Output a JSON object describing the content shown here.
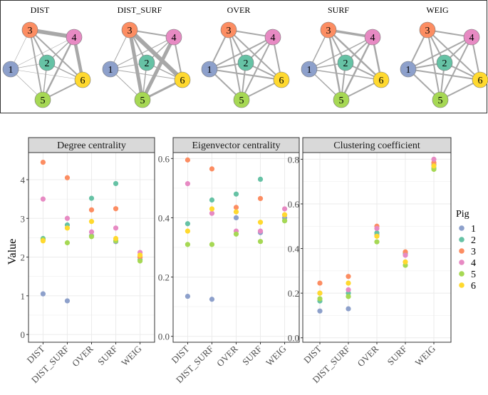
{
  "colors": {
    "pig1": "#8da0cb",
    "pig2": "#66c2a5",
    "pig3": "#fc8d62",
    "pig4": "#e78ac3",
    "pig5": "#a6d854",
    "pig6": "#ffd92f",
    "edge": "#a8a8a8",
    "strip": "#d9d9d9",
    "grid": "#ebebeb",
    "frame": "#333333"
  },
  "networks": {
    "titles": [
      "DIST",
      "DIST_SURF",
      "OVER",
      "SURF",
      "WEIG"
    ],
    "node_labels": [
      "1",
      "2",
      "3",
      "4",
      "5",
      "6"
    ],
    "edge_pairs": [
      [
        3,
        4
      ],
      [
        3,
        6
      ],
      [
        3,
        5
      ],
      [
        3,
        2
      ],
      [
        3,
        1
      ],
      [
        4,
        6
      ],
      [
        4,
        5
      ],
      [
        4,
        2
      ],
      [
        4,
        1
      ],
      [
        2,
        1
      ],
      [
        2,
        6
      ],
      [
        2,
        5
      ],
      [
        1,
        5
      ],
      [
        1,
        6
      ],
      [
        5,
        6
      ]
    ],
    "edge_weights": [
      [
        5.5,
        2,
        2,
        2,
        0.6,
        4.5,
        2.5,
        1.5,
        0.6,
        0.8,
        1.5,
        1.5,
        0.7,
        0.6,
        2
      ],
      [
        2,
        6,
        5,
        2,
        1,
        2,
        5,
        1.5,
        1,
        1,
        1.5,
        1.5,
        1,
        1,
        3
      ],
      [
        2,
        2,
        2,
        2,
        2,
        2,
        2,
        2,
        2,
        2,
        2,
        2,
        2,
        2,
        2
      ],
      [
        3.5,
        2.5,
        2.5,
        2,
        1.5,
        2.5,
        2.5,
        2,
        1.5,
        1.5,
        2,
        2,
        1.5,
        1.5,
        2
      ],
      [
        2,
        2,
        2,
        2,
        2,
        2,
        2,
        2,
        2,
        2,
        2,
        2,
        2,
        2,
        2
      ]
    ]
  },
  "chart_data": {
    "type": "scatter",
    "ylabel": "Value",
    "categories": [
      "DIST",
      "DIST_SURF",
      "OVER",
      "SURF",
      "WEIG"
    ],
    "legend": {
      "title": "Pig",
      "entries": [
        "1",
        "2",
        "3",
        "4",
        "5",
        "6"
      ],
      "placement": "right"
    },
    "panels": [
      {
        "title": "Degree centrality",
        "ylim": [
          -0.2,
          4.7
        ],
        "yticks": [
          0,
          1,
          2,
          3,
          4
        ],
        "ytick_labels": [
          "0",
          "1",
          "2",
          "3",
          "4"
        ],
        "series": [
          {
            "name": "1",
            "values": [
              1.05,
              0.87,
              2.55,
              2.4,
              2.0
            ]
          },
          {
            "name": "2",
            "values": [
              2.48,
              2.83,
              3.52,
              3.9,
              1.93
            ]
          },
          {
            "name": "3",
            "values": [
              4.45,
              4.05,
              3.22,
              3.25,
              2.0
            ]
          },
          {
            "name": "4",
            "values": [
              3.5,
              3.0,
              2.65,
              2.75,
              2.12
            ]
          },
          {
            "name": "5",
            "values": [
              2.45,
              2.37,
              2.53,
              2.42,
              1.9
            ]
          },
          {
            "name": "6",
            "values": [
              2.42,
              2.75,
              2.92,
              2.48,
              2.05
            ]
          }
        ]
      },
      {
        "title": "Eigenvector centrality",
        "ylim": [
          -0.02,
          0.62
        ],
        "yticks": [
          0.0,
          0.2,
          0.4,
          0.6
        ],
        "ytick_labels": [
          "0.0",
          "0.2",
          "0.4",
          "0.6"
        ],
        "series": [
          {
            "name": "1",
            "values": [
              0.135,
              0.125,
              0.4,
              0.35,
              0.4
            ]
          },
          {
            "name": "2",
            "values": [
              0.38,
              0.46,
              0.48,
              0.53,
              0.39
            ]
          },
          {
            "name": "3",
            "values": [
              0.595,
              0.565,
              0.435,
              0.465,
              0.41
            ]
          },
          {
            "name": "4",
            "values": [
              0.515,
              0.415,
              0.355,
              0.355,
              0.43
            ]
          },
          {
            "name": "5",
            "values": [
              0.31,
              0.31,
              0.345,
              0.32,
              0.39
            ]
          },
          {
            "name": "6",
            "values": [
              0.355,
              0.43,
              0.42,
              0.385,
              0.41
            ]
          }
        ]
      },
      {
        "title": "Clustering coefficient",
        "ylim": [
          -0.02,
          0.83
        ],
        "yticks": [
          0.0,
          0.2,
          0.4,
          0.6,
          0.8
        ],
        "ytick_labels": [
          "0.0",
          "0.2",
          "0.4",
          "0.6",
          "0.8"
        ],
        "series": [
          {
            "name": "1",
            "values": [
              0.12,
              0.13,
              0.46,
              0.375,
              0.775
            ]
          },
          {
            "name": "2",
            "values": [
              0.165,
              0.2,
              0.47,
              0.38,
              0.76
            ]
          },
          {
            "name": "3",
            "values": [
              0.245,
              0.275,
              0.5,
              0.385,
              0.785
            ]
          },
          {
            "name": "4",
            "values": [
              0.2,
              0.215,
              0.49,
              0.37,
              0.8
            ]
          },
          {
            "name": "5",
            "values": [
              0.175,
              0.185,
              0.43,
              0.325,
              0.755
            ]
          },
          {
            "name": "6",
            "values": [
              0.2,
              0.245,
              0.455,
              0.34,
              0.77
            ]
          }
        ]
      }
    ]
  }
}
